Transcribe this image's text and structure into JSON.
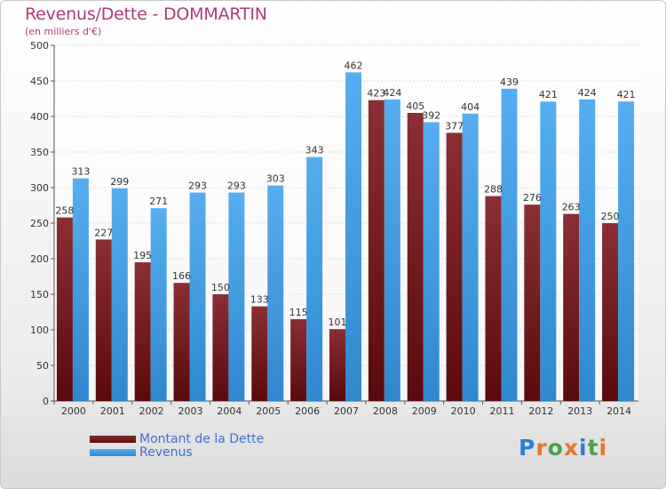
{
  "page": {
    "title": "Revenus/Dette - DOMMARTIN",
    "subtitle": "(en milliers d'€)",
    "logo": "Proxiti"
  },
  "colors": {
    "dette": "#7a2226",
    "revenus": "#4aa3e8",
    "title": "#b03a7a",
    "legend_text": "#3f6fd3"
  },
  "chart_data": {
    "type": "bar",
    "categories": [
      "2000",
      "2001",
      "2002",
      "2003",
      "2004",
      "2005",
      "2006",
      "2007",
      "2008",
      "2009",
      "2010",
      "2011",
      "2012",
      "2013",
      "2014"
    ],
    "series": [
      {
        "name": "Montant de la Dette",
        "values": [
          258,
          227,
          195,
          166,
          150,
          133,
          115,
          101,
          423,
          405,
          377,
          288,
          276,
          263,
          250
        ]
      },
      {
        "name": "Revenus",
        "values": [
          313,
          299,
          271,
          293,
          293,
          303,
          343,
          462,
          424,
          392,
          404,
          439,
          421,
          424,
          421
        ]
      }
    ],
    "ylim": [
      0,
      500
    ],
    "yticks": [
      0,
      50,
      100,
      150,
      200,
      250,
      300,
      350,
      400,
      450,
      500
    ],
    "grid": true,
    "legend": "bottom-left"
  }
}
